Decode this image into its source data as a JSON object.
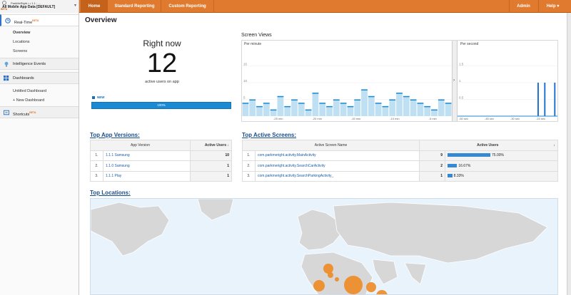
{
  "account": {
    "line1": "ParkMeRight • • 1.1 - …",
    "line2": "All Mobile App Data [DEFAULT]",
    "beta": "BETA"
  },
  "nav": {
    "home": "Home",
    "standard": "Standard Reporting",
    "custom": "Custom Reporting",
    "admin": "Admin",
    "help": "Help"
  },
  "sidebar": {
    "realtime": "Real-Time",
    "beta": "BETA",
    "realtime_items": [
      "Overview",
      "Locations",
      "Screens"
    ],
    "intelligence": "Intelligence Events",
    "dashboards": "Dashboards",
    "dashboard_items": [
      "Untitled Dashboard",
      "+ New Dashboard"
    ],
    "shortcuts": "Shortcuts"
  },
  "overview": {
    "title": "Overview",
    "right_now_title": "Right now",
    "active_count": "12",
    "active_label": "active users on app",
    "new_label": "NEW",
    "new_pct": "100%"
  },
  "screen_views": {
    "title": "Screen Views",
    "per_minute": "Per minute",
    "per_second": "Per second",
    "pm_yticks": [
      "15",
      "10",
      "5"
    ],
    "pm_xticks": [
      "-25 min",
      "-20 min",
      "-15 min",
      "-10 min",
      "-5 min"
    ],
    "ps_yticks": [
      "1.5",
      "1",
      "0.5"
    ],
    "ps_xticks": [
      "-60 sec",
      "-45 sec",
      "-30 sec",
      "-15 sec"
    ],
    "pm_values": [
      4,
      5,
      3,
      4,
      2,
      6,
      3,
      5,
      4,
      2,
      7,
      4,
      3,
      5,
      4,
      3,
      5,
      8,
      6,
      4,
      3,
      5,
      7,
      6,
      5,
      4,
      3,
      2,
      5,
      4
    ],
    "ps_values": [
      0,
      0,
      0,
      0,
      0,
      0,
      0,
      0,
      0,
      0,
      0,
      0,
      0,
      0,
      0,
      0,
      0,
      0,
      0,
      0,
      0,
      0,
      0,
      0,
      0,
      0,
      0,
      0,
      0,
      0,
      0,
      0,
      0,
      0,
      0,
      0,
      0,
      0,
      0,
      0,
      0,
      0,
      0,
      0,
      0,
      0,
      0,
      0,
      1,
      0,
      0,
      0,
      1,
      0,
      0,
      0,
      0,
      0,
      1,
      0
    ]
  },
  "colors": {
    "accent": "#e07a2e",
    "link": "#1a5ca8",
    "bar": "#1a8ad4",
    "bubble": "#f08a24"
  },
  "app_versions": {
    "title": "Top App Versions:",
    "col_version": "App Version",
    "col_users": "Active Users",
    "sort_icon": "↓",
    "rows": [
      {
        "n": "1.",
        "name": "1.1.1 Samsung",
        "users": "10"
      },
      {
        "n": "2.",
        "name": "1.1.0 Samsung",
        "users": "1"
      },
      {
        "n": "3.",
        "name": "1.1.1 Play",
        "users": "1"
      }
    ]
  },
  "active_screens": {
    "title": "Top Active Screens:",
    "col_name": "Active Screen Name",
    "col_users": "Active Users",
    "sort_icon": "↓",
    "rows": [
      {
        "n": "1.",
        "name": "com.parkmeright.activity.MainActivity",
        "users": "9",
        "pct": "75.00%",
        "frac": 0.75
      },
      {
        "n": "2.",
        "name": "com.parkmeright.activity.SearchCarActivity",
        "users": "2",
        "pct": "16.67%",
        "frac": 0.1667
      },
      {
        "n": "3.",
        "name": "com.parkmeright.activity.SearchParkingActivity_",
        "users": "1",
        "pct": "8.33%",
        "frac": 0.0833
      }
    ]
  },
  "locations": {
    "title": "Top Locations:"
  }
}
